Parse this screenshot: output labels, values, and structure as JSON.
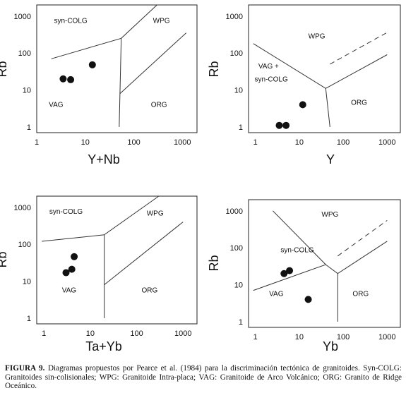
{
  "caption": {
    "label": "FIGURA 9.",
    "text": "Diagramas propuestos por Pearce et al. (1984) para la discriminación tectónica de granitoides. Syn-COLG: Granitoides sin-colisionales; WPG: Granitoide Intra-placa; VAG: Granitoide de Arco Volcánico; ORG: Granito de Ridge Oceánico."
  },
  "chart_data": [
    {
      "type": "scatter",
      "xlabel": "Y+Nb",
      "ylabel": "Rb",
      "x_scale": "log",
      "y_scale": "log",
      "xlim": [
        1,
        2000
      ],
      "ylim": [
        0.7,
        2000
      ],
      "x_ticks": [
        1,
        10,
        100,
        1000
      ],
      "y_ticks": [
        1,
        10,
        100,
        1000
      ],
      "points": [
        [
          3.5,
          20
        ],
        [
          5,
          19
        ],
        [
          14,
          48
        ]
      ],
      "boundaries": [
        {
          "style": "solid",
          "points": [
            [
              2,
              70
            ],
            [
              55,
              250
            ],
            [
              300,
              2000
            ]
          ]
        },
        {
          "style": "solid",
          "points": [
            [
              55,
              250
            ],
            [
              50,
              1
            ]
          ]
        },
        {
          "style": "solid",
          "points": [
            [
              52,
              8
            ],
            [
              1200,
              350
            ]
          ]
        }
      ],
      "region_labels": [
        {
          "text": "syn-COLG",
          "x": 5,
          "y": 650
        },
        {
          "text": "WPG",
          "x": 370,
          "y": 650
        },
        {
          "text": "VAG",
          "x": 2.5,
          "y": 3.5
        },
        {
          "text": "ORG",
          "x": 330,
          "y": 3.5
        }
      ]
    },
    {
      "type": "scatter",
      "xlabel": "Y",
      "ylabel": "Rb",
      "x_scale": "log",
      "y_scale": "log",
      "xlim": [
        0.7,
        2000
      ],
      "ylim": [
        0.7,
        2000
      ],
      "x_ticks": [
        1,
        10,
        100,
        1000
      ],
      "y_ticks": [
        1,
        10,
        100,
        1000
      ],
      "points": [
        [
          3.5,
          1.1
        ],
        [
          5,
          1.1
        ],
        [
          12,
          4
        ]
      ],
      "boundaries": [
        {
          "style": "solid",
          "points": [
            [
              0.9,
              180
            ],
            [
              40,
              11
            ],
            [
              1000,
              90
            ]
          ]
        },
        {
          "style": "solid",
          "points": [
            [
              40,
              11
            ],
            [
              50,
              1
            ]
          ]
        },
        {
          "style": "dashed",
          "points": [
            [
              50,
              50
            ],
            [
              1000,
              360
            ]
          ]
        }
      ],
      "region_labels": [
        {
          "text": "WPG",
          "x": 25,
          "y": 250
        },
        {
          "text": "VAG +",
          "x": 2,
          "y": 38
        },
        {
          "text": "syn-COLG",
          "x": 2.3,
          "y": 17
        },
        {
          "text": "ORG",
          "x": 230,
          "y": 4
        }
      ]
    },
    {
      "type": "scatter",
      "xlabel": "Ta+Yb",
      "ylabel": "Rb",
      "x_scale": "log",
      "y_scale": "log",
      "xlim": [
        0.7,
        2000
      ],
      "ylim": [
        0.7,
        2000
      ],
      "x_ticks": [
        1,
        10,
        100,
        1000
      ],
      "y_ticks": [
        1,
        10,
        100,
        1000
      ],
      "points": [
        [
          3,
          17
        ],
        [
          4,
          21
        ],
        [
          4.5,
          46
        ]
      ],
      "boundaries": [
        {
          "style": "solid",
          "points": [
            [
              0.9,
              120
            ],
            [
              20,
              180
            ],
            [
              300,
              2000
            ]
          ]
        },
        {
          "style": "solid",
          "points": [
            [
              20,
              180
            ],
            [
              20,
              1
            ]
          ]
        },
        {
          "style": "solid",
          "points": [
            [
              20,
              8
            ],
            [
              1000,
              400
            ]
          ]
        }
      ],
      "region_labels": [
        {
          "text": "syn-COLG",
          "x": 3,
          "y": 670
        },
        {
          "text": "WPG",
          "x": 250,
          "y": 600
        },
        {
          "text": "VAG",
          "x": 3.5,
          "y": 5
        },
        {
          "text": "ORG",
          "x": 190,
          "y": 5
        }
      ]
    },
    {
      "type": "scatter",
      "xlabel": "Yb",
      "ylabel": "Rb",
      "x_scale": "log",
      "y_scale": "log",
      "xlim": [
        0.7,
        2000
      ],
      "ylim": [
        0.7,
        2000
      ],
      "x_ticks": [
        1,
        10,
        100,
        1000
      ],
      "y_ticks": [
        1,
        10,
        100,
        1000
      ],
      "points": [
        [
          4.5,
          20
        ],
        [
          6,
          24
        ],
        [
          16,
          4
        ]
      ],
      "boundaries": [
        {
          "style": "solid",
          "points": [
            [
              0.9,
              7
            ],
            [
              40,
              35
            ],
            [
              75,
              20
            ],
            [
              1000,
              150
            ]
          ]
        },
        {
          "style": "solid",
          "points": [
            [
              2.5,
              1000
            ],
            [
              40,
              35
            ]
          ]
        },
        {
          "style": "solid",
          "points": [
            [
              75,
              20
            ],
            [
              75,
              1
            ]
          ]
        },
        {
          "style": "dashed",
          "points": [
            [
              75,
              60
            ],
            [
              1000,
              550
            ]
          ]
        }
      ],
      "region_labels": [
        {
          "text": "WPG",
          "x": 50,
          "y": 700
        },
        {
          "text": "syn-COLG",
          "x": 9,
          "y": 75
        },
        {
          "text": "VAG",
          "x": 3,
          "y": 5
        },
        {
          "text": "ORG",
          "x": 250,
          "y": 5
        }
      ]
    }
  ]
}
